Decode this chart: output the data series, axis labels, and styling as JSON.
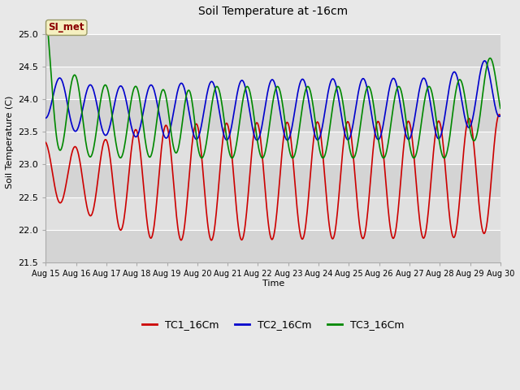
{
  "title": "Soil Temperature at -16cm",
  "xlabel": "Time",
  "ylabel": "Soil Temperature (C)",
  "ylim": [
    21.5,
    25.2
  ],
  "annotation_text": "SI_met",
  "bg_color": "#e8e8e8",
  "legend_labels": [
    "TC1_16Cm",
    "TC2_16Cm",
    "TC3_16Cm"
  ],
  "colors": [
    "#cc0000",
    "#0000cc",
    "#008800"
  ],
  "line_width": 1.2,
  "yticks": [
    21.5,
    22.0,
    22.5,
    23.0,
    23.5,
    24.0,
    24.5,
    25.0
  ],
  "band_colors": [
    "#d4d4d4",
    "#e0e0e0"
  ],
  "title_fontsize": 10,
  "axis_fontsize": 8,
  "legend_fontsize": 9
}
